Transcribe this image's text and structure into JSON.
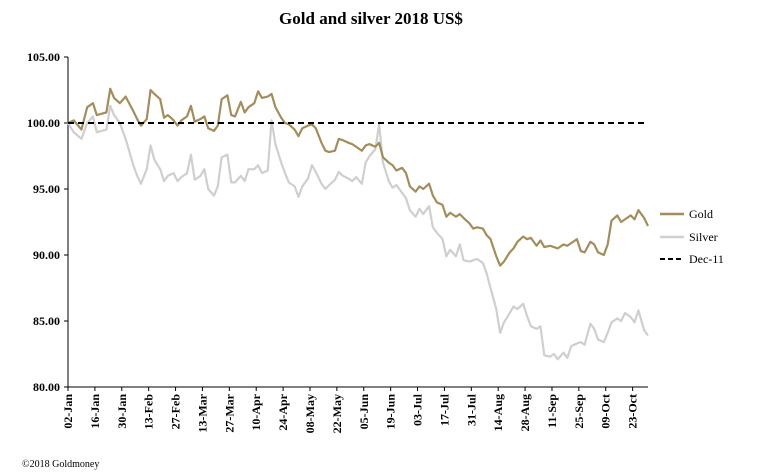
{
  "credit": "©2018 Goldmoney",
  "chart_data": {
    "type": "line",
    "title": "Gold and silver 2018  US$",
    "xlabel": "",
    "ylabel": "",
    "ylim": [
      80,
      105
    ],
    "yticks": [
      "105.00",
      "100.00",
      "95.00",
      "90.00",
      "85.00",
      "80.00"
    ],
    "xticks": [
      "02-Jan",
      "16-Jan",
      "30-Jan",
      "13-Feb",
      "27-Feb",
      "13-Mar",
      "27-Mar",
      "10-Apr",
      "24-Apr",
      "08-May",
      "22-May",
      "05-Jun",
      "19-Jun",
      "03-Jul",
      "17-Jul",
      "31-Jul",
      "14-Aug",
      "28-Aug",
      "11-Sep",
      "25-Sep",
      "09-Oct",
      "23-Oct"
    ],
    "grid": false,
    "legend_position": "right",
    "x_start": "2018-01-02",
    "x_end": "2018-10-31",
    "colors": {
      "gold": "#a38d5b",
      "silver": "#cfcfcf",
      "reference": "#000000"
    },
    "series": [
      {
        "name": "Gold",
        "points": [
          [
            "2018-01-02",
            100.0
          ],
          [
            "2018-01-05",
            100.2
          ],
          [
            "2018-01-09",
            99.5
          ],
          [
            "2018-01-12",
            101.2
          ],
          [
            "2018-01-15",
            101.5
          ],
          [
            "2018-01-17",
            100.6
          ],
          [
            "2018-01-22",
            100.8
          ],
          [
            "2018-01-24",
            102.6
          ],
          [
            "2018-01-26",
            101.9
          ],
          [
            "2018-01-29",
            101.5
          ],
          [
            "2018-02-01",
            102.0
          ],
          [
            "2018-02-05",
            100.9
          ],
          [
            "2018-02-07",
            100.3
          ],
          [
            "2018-02-09",
            99.8
          ],
          [
            "2018-02-12",
            100.3
          ],
          [
            "2018-02-14",
            102.5
          ],
          [
            "2018-02-16",
            102.2
          ],
          [
            "2018-02-19",
            101.8
          ],
          [
            "2018-02-21",
            100.4
          ],
          [
            "2018-02-23",
            100.6
          ],
          [
            "2018-02-26",
            100.2
          ],
          [
            "2018-02-28",
            99.8
          ],
          [
            "2018-03-02",
            100.2
          ],
          [
            "2018-03-05",
            100.5
          ],
          [
            "2018-03-07",
            101.3
          ],
          [
            "2018-03-09",
            100.1
          ],
          [
            "2018-03-12",
            100.3
          ],
          [
            "2018-03-14",
            100.5
          ],
          [
            "2018-03-16",
            99.6
          ],
          [
            "2018-03-19",
            99.4
          ],
          [
            "2018-03-21",
            99.8
          ],
          [
            "2018-03-23",
            101.8
          ],
          [
            "2018-03-26",
            102.1
          ],
          [
            "2018-03-28",
            100.6
          ],
          [
            "2018-03-30",
            100.5
          ],
          [
            "2018-04-02",
            101.6
          ],
          [
            "2018-04-04",
            100.8
          ],
          [
            "2018-04-06",
            101.2
          ],
          [
            "2018-04-09",
            101.5
          ],
          [
            "2018-04-11",
            102.4
          ],
          [
            "2018-04-13",
            101.9
          ],
          [
            "2018-04-16",
            102.0
          ],
          [
            "2018-04-18",
            102.2
          ],
          [
            "2018-04-20",
            101.2
          ],
          [
            "2018-04-23",
            100.4
          ],
          [
            "2018-04-25",
            100.0
          ],
          [
            "2018-04-27",
            99.9
          ],
          [
            "2018-04-30",
            99.5
          ],
          [
            "2018-05-02",
            99.0
          ],
          [
            "2018-05-04",
            99.6
          ],
          [
            "2018-05-07",
            99.8
          ],
          [
            "2018-05-09",
            99.9
          ],
          [
            "2018-05-11",
            99.6
          ],
          [
            "2018-05-14",
            98.5
          ],
          [
            "2018-05-16",
            97.9
          ],
          [
            "2018-05-18",
            97.8
          ],
          [
            "2018-05-21",
            97.9
          ],
          [
            "2018-05-23",
            98.8
          ],
          [
            "2018-05-25",
            98.7
          ],
          [
            "2018-05-28",
            98.5
          ],
          [
            "2018-05-30",
            98.4
          ],
          [
            "2018-06-01",
            98.2
          ],
          [
            "2018-06-04",
            97.9
          ],
          [
            "2018-06-06",
            98.3
          ],
          [
            "2018-06-08",
            98.4
          ],
          [
            "2018-06-11",
            98.2
          ],
          [
            "2018-06-13",
            98.5
          ],
          [
            "2018-06-15",
            97.4
          ],
          [
            "2018-06-18",
            97.0
          ],
          [
            "2018-06-20",
            96.8
          ],
          [
            "2018-06-22",
            96.4
          ],
          [
            "2018-06-25",
            96.6
          ],
          [
            "2018-06-27",
            96.2
          ],
          [
            "2018-06-29",
            95.2
          ],
          [
            "2018-07-02",
            94.8
          ],
          [
            "2018-07-04",
            95.2
          ],
          [
            "2018-07-06",
            95.0
          ],
          [
            "2018-07-09",
            95.4
          ],
          [
            "2018-07-11",
            94.5
          ],
          [
            "2018-07-13",
            94.0
          ],
          [
            "2018-07-16",
            93.8
          ],
          [
            "2018-07-18",
            92.9
          ],
          [
            "2018-07-20",
            93.2
          ],
          [
            "2018-07-23",
            92.9
          ],
          [
            "2018-07-25",
            93.1
          ],
          [
            "2018-07-27",
            92.8
          ],
          [
            "2018-07-30",
            92.4
          ],
          [
            "2018-08-01",
            92.0
          ],
          [
            "2018-08-03",
            92.1
          ],
          [
            "2018-08-06",
            92.0
          ],
          [
            "2018-08-08",
            91.5
          ],
          [
            "2018-08-10",
            91.2
          ],
          [
            "2018-08-13",
            89.9
          ],
          [
            "2018-08-15",
            89.2
          ],
          [
            "2018-08-17",
            89.5
          ],
          [
            "2018-08-20",
            90.2
          ],
          [
            "2018-08-22",
            90.5
          ],
          [
            "2018-08-24",
            91.0
          ],
          [
            "2018-08-27",
            91.4
          ],
          [
            "2018-08-29",
            91.2
          ],
          [
            "2018-08-31",
            91.3
          ],
          [
            "2018-09-03",
            90.7
          ],
          [
            "2018-09-05",
            91.1
          ],
          [
            "2018-09-07",
            90.6
          ],
          [
            "2018-09-10",
            90.7
          ],
          [
            "2018-09-12",
            90.6
          ],
          [
            "2018-09-14",
            90.5
          ],
          [
            "2018-09-17",
            90.8
          ],
          [
            "2018-09-19",
            90.7
          ],
          [
            "2018-09-21",
            90.9
          ],
          [
            "2018-09-24",
            91.2
          ],
          [
            "2018-09-26",
            90.3
          ],
          [
            "2018-09-28",
            90.2
          ],
          [
            "2018-10-01",
            91.0
          ],
          [
            "2018-10-03",
            90.8
          ],
          [
            "2018-10-05",
            90.2
          ],
          [
            "2018-10-08",
            90.0
          ],
          [
            "2018-10-10",
            90.8
          ],
          [
            "2018-10-12",
            92.6
          ],
          [
            "2018-10-15",
            93.0
          ],
          [
            "2018-10-17",
            92.5
          ],
          [
            "2018-10-19",
            92.7
          ],
          [
            "2018-10-22",
            93.0
          ],
          [
            "2018-10-24",
            92.7
          ],
          [
            "2018-10-26",
            93.4
          ],
          [
            "2018-10-29",
            92.8
          ],
          [
            "2018-10-31",
            92.2
          ]
        ]
      },
      {
        "name": "Silver",
        "points": [
          [
            "2018-01-02",
            100.0
          ],
          [
            "2018-01-05",
            99.3
          ],
          [
            "2018-01-09",
            98.8
          ],
          [
            "2018-01-12",
            100.0
          ],
          [
            "2018-01-15",
            100.5
          ],
          [
            "2018-01-17",
            99.3
          ],
          [
            "2018-01-22",
            99.5
          ],
          [
            "2018-01-24",
            101.3
          ],
          [
            "2018-01-26",
            100.6
          ],
          [
            "2018-01-29",
            100.0
          ],
          [
            "2018-02-01",
            98.8
          ],
          [
            "2018-02-05",
            96.8
          ],
          [
            "2018-02-07",
            96.0
          ],
          [
            "2018-02-09",
            95.4
          ],
          [
            "2018-02-12",
            96.5
          ],
          [
            "2018-02-14",
            98.3
          ],
          [
            "2018-02-16",
            97.2
          ],
          [
            "2018-02-19",
            96.5
          ],
          [
            "2018-02-21",
            95.6
          ],
          [
            "2018-02-23",
            96.0
          ],
          [
            "2018-02-26",
            96.2
          ],
          [
            "2018-02-28",
            95.6
          ],
          [
            "2018-03-02",
            95.9
          ],
          [
            "2018-03-05",
            96.2
          ],
          [
            "2018-03-07",
            97.6
          ],
          [
            "2018-03-09",
            95.7
          ],
          [
            "2018-03-12",
            96.0
          ],
          [
            "2018-03-14",
            96.5
          ],
          [
            "2018-03-16",
            95.0
          ],
          [
            "2018-03-19",
            94.5
          ],
          [
            "2018-03-21",
            95.2
          ],
          [
            "2018-03-23",
            97.4
          ],
          [
            "2018-03-26",
            97.6
          ],
          [
            "2018-03-28",
            95.5
          ],
          [
            "2018-03-30",
            95.5
          ],
          [
            "2018-04-02",
            96.0
          ],
          [
            "2018-04-04",
            95.6
          ],
          [
            "2018-04-06",
            96.5
          ],
          [
            "2018-04-09",
            96.5
          ],
          [
            "2018-04-11",
            96.8
          ],
          [
            "2018-04-13",
            96.2
          ],
          [
            "2018-04-16",
            96.4
          ],
          [
            "2018-04-18",
            100.2
          ],
          [
            "2018-04-20",
            98.4
          ],
          [
            "2018-04-23",
            97.0
          ],
          [
            "2018-04-25",
            96.2
          ],
          [
            "2018-04-27",
            95.5
          ],
          [
            "2018-04-30",
            95.2
          ],
          [
            "2018-05-02",
            94.4
          ],
          [
            "2018-05-04",
            95.2
          ],
          [
            "2018-05-07",
            95.8
          ],
          [
            "2018-05-09",
            96.8
          ],
          [
            "2018-05-11",
            96.3
          ],
          [
            "2018-05-14",
            95.4
          ],
          [
            "2018-05-16",
            95.0
          ],
          [
            "2018-05-18",
            95.3
          ],
          [
            "2018-05-21",
            95.7
          ],
          [
            "2018-05-23",
            96.3
          ],
          [
            "2018-05-25",
            96.0
          ],
          [
            "2018-05-28",
            95.8
          ],
          [
            "2018-05-30",
            95.6
          ],
          [
            "2018-06-01",
            95.9
          ],
          [
            "2018-06-04",
            95.4
          ],
          [
            "2018-06-06",
            97.0
          ],
          [
            "2018-06-08",
            97.5
          ],
          [
            "2018-06-11",
            98.0
          ],
          [
            "2018-06-13",
            99.9
          ],
          [
            "2018-06-15",
            97.0
          ],
          [
            "2018-06-18",
            95.6
          ],
          [
            "2018-06-20",
            95.1
          ],
          [
            "2018-06-22",
            95.3
          ],
          [
            "2018-06-25",
            94.7
          ],
          [
            "2018-06-27",
            94.3
          ],
          [
            "2018-06-29",
            93.4
          ],
          [
            "2018-07-02",
            92.9
          ],
          [
            "2018-07-04",
            93.5
          ],
          [
            "2018-07-06",
            93.1
          ],
          [
            "2018-07-09",
            93.7
          ],
          [
            "2018-07-11",
            92.1
          ],
          [
            "2018-07-13",
            91.7
          ],
          [
            "2018-07-16",
            91.2
          ],
          [
            "2018-07-18",
            89.9
          ],
          [
            "2018-07-20",
            90.4
          ],
          [
            "2018-07-23",
            89.9
          ],
          [
            "2018-07-25",
            90.8
          ],
          [
            "2018-07-27",
            89.6
          ],
          [
            "2018-07-30",
            89.5
          ],
          [
            "2018-08-01",
            89.6
          ],
          [
            "2018-08-03",
            89.7
          ],
          [
            "2018-08-06",
            89.4
          ],
          [
            "2018-08-08",
            88.6
          ],
          [
            "2018-08-10",
            87.5
          ],
          [
            "2018-08-13",
            85.9
          ],
          [
            "2018-08-15",
            84.1
          ],
          [
            "2018-08-17",
            84.9
          ],
          [
            "2018-08-20",
            85.6
          ],
          [
            "2018-08-22",
            86.1
          ],
          [
            "2018-08-24",
            85.9
          ],
          [
            "2018-08-27",
            86.3
          ],
          [
            "2018-08-29",
            85.4
          ],
          [
            "2018-08-31",
            84.6
          ],
          [
            "2018-09-03",
            84.4
          ],
          [
            "2018-09-05",
            84.6
          ],
          [
            "2018-09-07",
            82.4
          ],
          [
            "2018-09-10",
            82.3
          ],
          [
            "2018-09-12",
            82.5
          ],
          [
            "2018-09-14",
            82.1
          ],
          [
            "2018-09-17",
            82.6
          ],
          [
            "2018-09-19",
            82.2
          ],
          [
            "2018-09-21",
            83.1
          ],
          [
            "2018-09-24",
            83.3
          ],
          [
            "2018-09-26",
            83.4
          ],
          [
            "2018-09-28",
            83.2
          ],
          [
            "2018-10-01",
            84.8
          ],
          [
            "2018-10-03",
            84.4
          ],
          [
            "2018-10-05",
            83.6
          ],
          [
            "2018-10-08",
            83.4
          ],
          [
            "2018-10-10",
            84.1
          ],
          [
            "2018-10-12",
            84.9
          ],
          [
            "2018-10-15",
            85.2
          ],
          [
            "2018-10-17",
            85.0
          ],
          [
            "2018-10-19",
            85.6
          ],
          [
            "2018-10-22",
            85.3
          ],
          [
            "2018-10-24",
            84.9
          ],
          [
            "2018-10-26",
            85.8
          ],
          [
            "2018-10-29",
            84.3
          ],
          [
            "2018-10-31",
            83.9
          ]
        ]
      },
      {
        "name": "Dec-11",
        "style": "dashed",
        "points": [
          [
            "2018-01-02",
            100.0
          ],
          [
            "2018-10-31",
            100.0
          ]
        ]
      }
    ]
  }
}
